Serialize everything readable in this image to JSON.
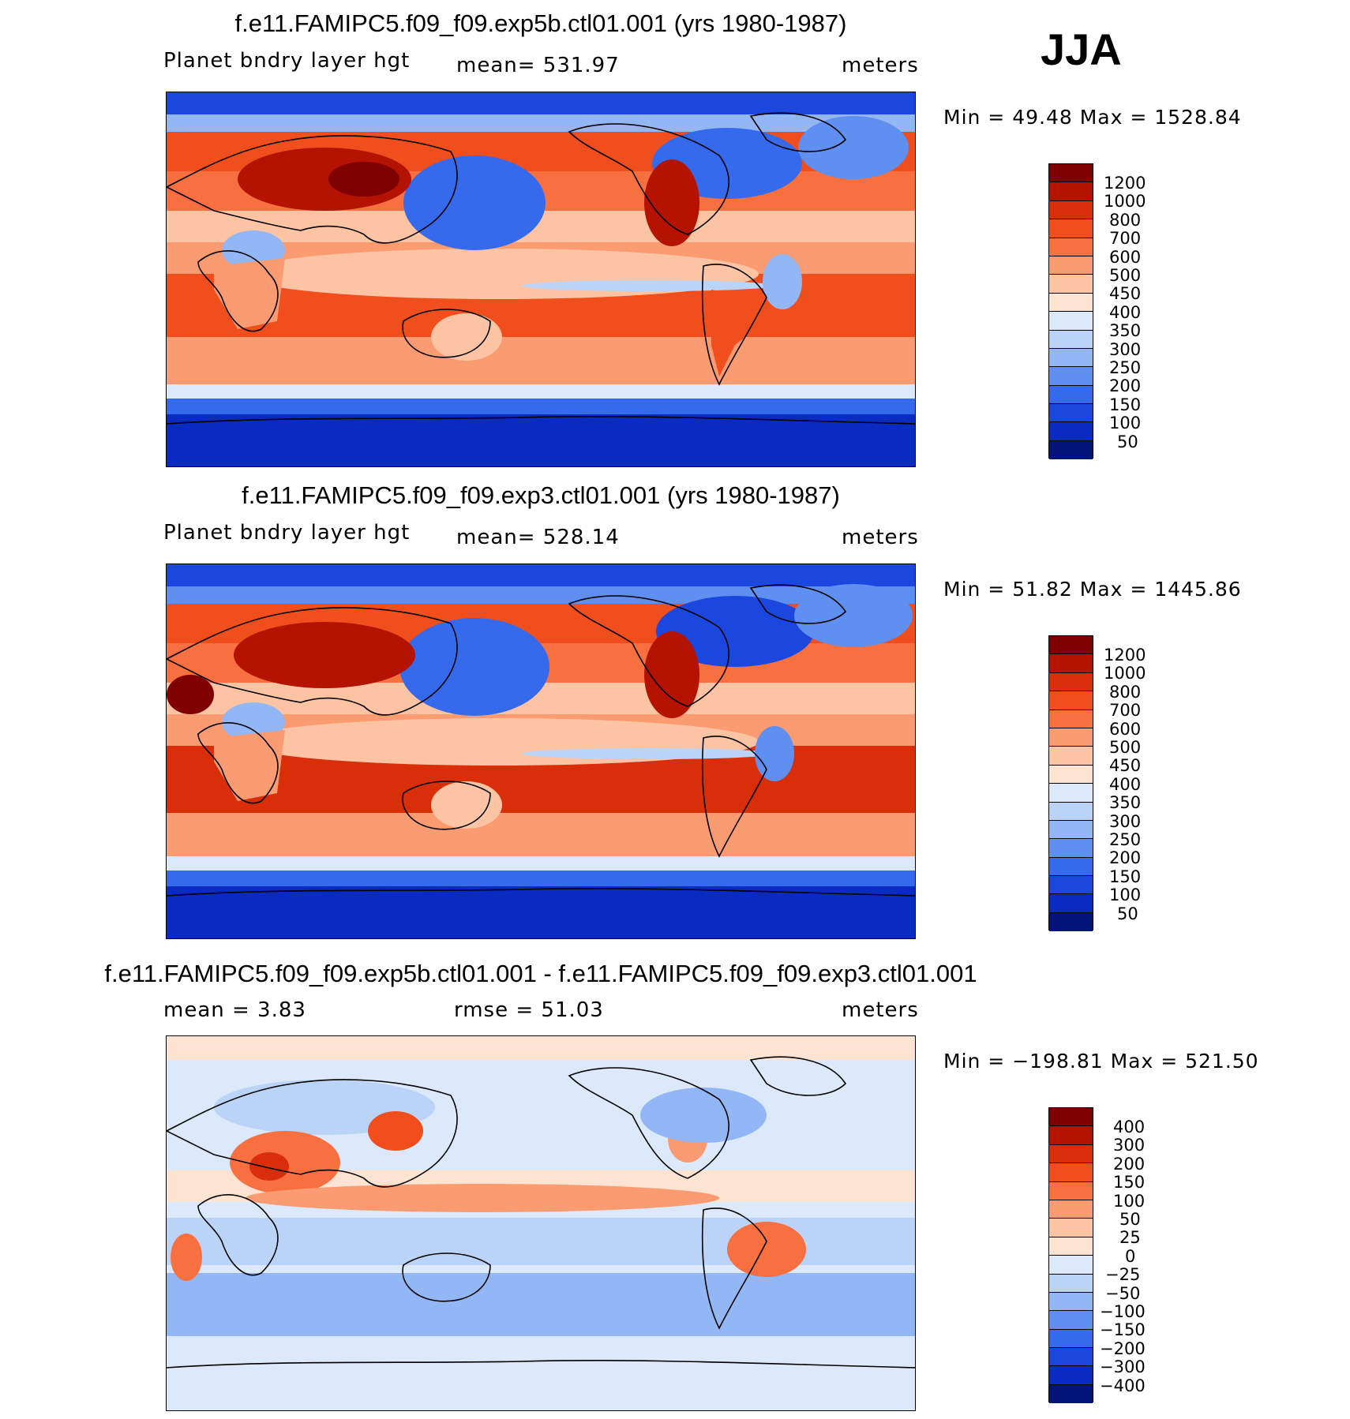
{
  "season": "JJA",
  "panels": [
    {
      "title": "f.e11.FAMIPC5.f09_f09.exp5b.ctl01.001 (yrs 1980-1987)",
      "left": "Planet bndry layer hgt",
      "center": "mean=  531.97",
      "units": "meters",
      "minmax": "Min =   49.48 Max = 1528.84"
    },
    {
      "title": "f.e11.FAMIPC5.f09_f09.exp3.ctl01.001 (yrs 1980-1987)",
      "left": "Planet bndry layer hgt",
      "center": "mean=  528.14",
      "units": "meters",
      "minmax": "Min =   51.82 Max = 1445.86"
    },
    {
      "title": "f.e11.FAMIPC5.f09_f09.exp5b.ctl01.001 - f.e11.FAMIPC5.f09_f09.exp3.ctl01.001",
      "left": "mean =    3.83",
      "center": "rmse =   51.03",
      "units": "meters",
      "minmax": "Min = −198.81 Max = 521.50"
    }
  ],
  "chart_data": [
    {
      "type": "heatmap",
      "title": "f.e11.FAMIPC5.f09_f09.exp5b.ctl01.001 (yrs 1980-1987)",
      "variable": "Planet bndry layer hgt",
      "units": "meters",
      "mean": 531.97,
      "min": 49.48,
      "max": 1528.84,
      "colorbar_levels": [
        "1200",
        "1000",
        "800",
        "700",
        "600",
        "500",
        "450",
        "400",
        "350",
        "300",
        "250",
        "200",
        "150",
        "100",
        "50"
      ],
      "colorbar_colors": [
        "#7f0000",
        "#b31300",
        "#d92e0a",
        "#f04e1c",
        "#f87040",
        "#fa9b72",
        "#fdc4a4",
        "#fde3d2",
        "#dbe9fb",
        "#bcd3f8",
        "#93b6f4",
        "#5f8ff0",
        "#356aec",
        "#1b47de",
        "#0a2bc0",
        "#00147a"
      ]
    },
    {
      "type": "heatmap",
      "title": "f.e11.FAMIPC5.f09_f09.exp3.ctl01.001 (yrs 1980-1987)",
      "variable": "Planet bndry layer hgt",
      "units": "meters",
      "mean": 528.14,
      "min": 51.82,
      "max": 1445.86,
      "colorbar_levels": [
        "1200",
        "1000",
        "800",
        "700",
        "600",
        "500",
        "450",
        "400",
        "350",
        "300",
        "250",
        "200",
        "150",
        "100",
        "50"
      ],
      "colorbar_colors": [
        "#7f0000",
        "#b31300",
        "#d92e0a",
        "#f04e1c",
        "#f87040",
        "#fa9b72",
        "#fdc4a4",
        "#fde3d2",
        "#dbe9fb",
        "#bcd3f8",
        "#93b6f4",
        "#5f8ff0",
        "#356aec",
        "#1b47de",
        "#0a2bc0",
        "#00147a"
      ]
    },
    {
      "type": "heatmap",
      "title": "f.e11.FAMIPC5.f09_f09.exp5b.ctl01.001 - f.e11.FAMIPC5.f09_f09.exp3.ctl01.001",
      "units": "meters",
      "mean": 3.83,
      "rmse": 51.03,
      "min": -198.81,
      "max": 521.5,
      "colorbar_levels": [
        "400",
        "300",
        "200",
        "150",
        "100",
        "50",
        "25",
        "0",
        "−25",
        "−50",
        "−100",
        "−150",
        "−200",
        "−300",
        "−400"
      ],
      "colorbar_colors": [
        "#7f0000",
        "#b31300",
        "#d92e0a",
        "#f04e1c",
        "#f87040",
        "#fa9b72",
        "#fdc4a4",
        "#fde3d2",
        "#dbe9fb",
        "#bcd3f8",
        "#93b6f4",
        "#5f8ff0",
        "#356aec",
        "#1b47de",
        "#0a2bc0",
        "#00147a"
      ]
    }
  ]
}
